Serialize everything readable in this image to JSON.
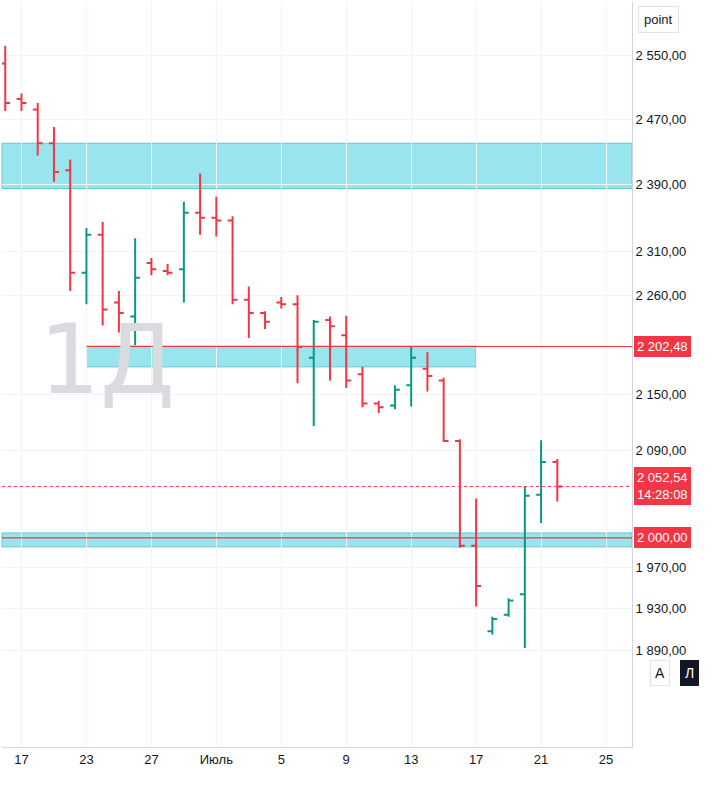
{
  "chart_data": {
    "type": "ohlc",
    "log": "y",
    "grid": true,
    "categories": [
      null,
      "17",
      null,
      null,
      null,
      "23",
      null,
      null,
      null,
      "27",
      null,
      null,
      null,
      "Июль",
      null,
      null,
      null,
      "5",
      null,
      null,
      null,
      "9",
      null,
      null,
      null,
      "13",
      null,
      null,
      null,
      "17",
      null,
      null,
      null,
      "21",
      null,
      null,
      null,
      "25"
    ],
    "open": [
      2540,
      2495,
      2482,
      2440,
      2407,
      2286,
      2330,
      2252,
      2236,
      2297,
      2288,
      2290,
      2356,
      2350,
      2347,
      2255,
      2240,
      2252,
      2250,
      2190,
      2232,
      2215,
      2172,
      2140,
      2138,
      2160,
      2178,
      2165,
      2100,
      1992,
      1908,
      1924,
      1944,
      2044,
      2078,
      null,
      null,
      null
    ],
    "high": [
      2563,
      2502,
      2490,
      2460,
      2420,
      2338,
      2345,
      2265,
      2326,
      2303,
      2296,
      2369,
      2403,
      2375,
      2352,
      2270,
      2242,
      2258,
      2260,
      2232,
      2236,
      2237,
      2180,
      2143,
      2160,
      2202,
      2196,
      2168,
      2102,
      2040,
      1922,
      1940,
      2052,
      2101,
      2081,
      null,
      null,
      null
    ],
    "low": [
      2480,
      2480,
      2425,
      2393,
      2265,
      2250,
      2226,
      2218,
      2204,
      2283,
      2283,
      2252,
      2330,
      2328,
      2250,
      2212,
      2222,
      2245,
      2162,
      2116,
      2165,
      2157,
      2136,
      2130,
      2134,
      2137,
      2153,
      2099,
      1990,
      1932,
      1905,
      1922,
      1892,
      2015,
      2037,
      null,
      null,
      null
    ],
    "close": [
      2490,
      2490,
      2440,
      2405,
      2286,
      2330,
      2244,
      2240,
      2280,
      2290,
      2286,
      2356,
      2350,
      2347,
      2255,
      2240,
      2230,
      2250,
      2202,
      2230,
      2225,
      2165,
      2140,
      2136,
      2155,
      2190,
      2170,
      2100,
      1992,
      1952,
      1920,
      1938,
      2043,
      2078,
      2052.54,
      null,
      null,
      null
    ],
    "increasing_color": "#089981",
    "decreasing_color": "#f23645",
    "ylim": [
      1800,
      2620
    ],
    "yticks": [
      {
        "value": 2550,
        "label": "2 550,00"
      },
      {
        "value": 2470,
        "label": "2 470,00"
      },
      {
        "value": 2390,
        "label": "2 390,00"
      },
      {
        "value": 2310,
        "label": "2 310,00"
      },
      {
        "value": 2260,
        "label": "2 260,00"
      },
      {
        "value": 2150,
        "label": "2 150,00"
      },
      {
        "value": 2090,
        "label": "2 090,00"
      },
      {
        "value": 1970,
        "label": "1 970,00"
      },
      {
        "value": 1930,
        "label": "1 930,00"
      },
      {
        "value": 1890,
        "label": "1 890,00"
      }
    ],
    "zones": [
      {
        "low": 2385,
        "high": 2440,
        "color": "#8ee3ec"
      },
      {
        "low": 2180,
        "high": 2203,
        "from_index": 5,
        "to_index": 29,
        "color": "#8ee3ec"
      },
      {
        "low": 1991,
        "high": 2005,
        "color": "#8ee3ec"
      }
    ],
    "levels": [
      {
        "value": 2202.48,
        "label": "2 202,48",
        "from_index": 5,
        "color": "#f23645",
        "line_style": "solid"
      },
      {
        "value": 2000,
        "label": "2 000,00",
        "color": "#f23645",
        "line_style": "solid"
      },
      {
        "value": 2052.54,
        "label": "2 052,54",
        "timer": "14:28:08",
        "color": "#f23645",
        "line_style": "dot"
      }
    ],
    "watermark": "1Д",
    "symbol": "point",
    "buttons": [
      "A",
      "Л"
    ]
  }
}
